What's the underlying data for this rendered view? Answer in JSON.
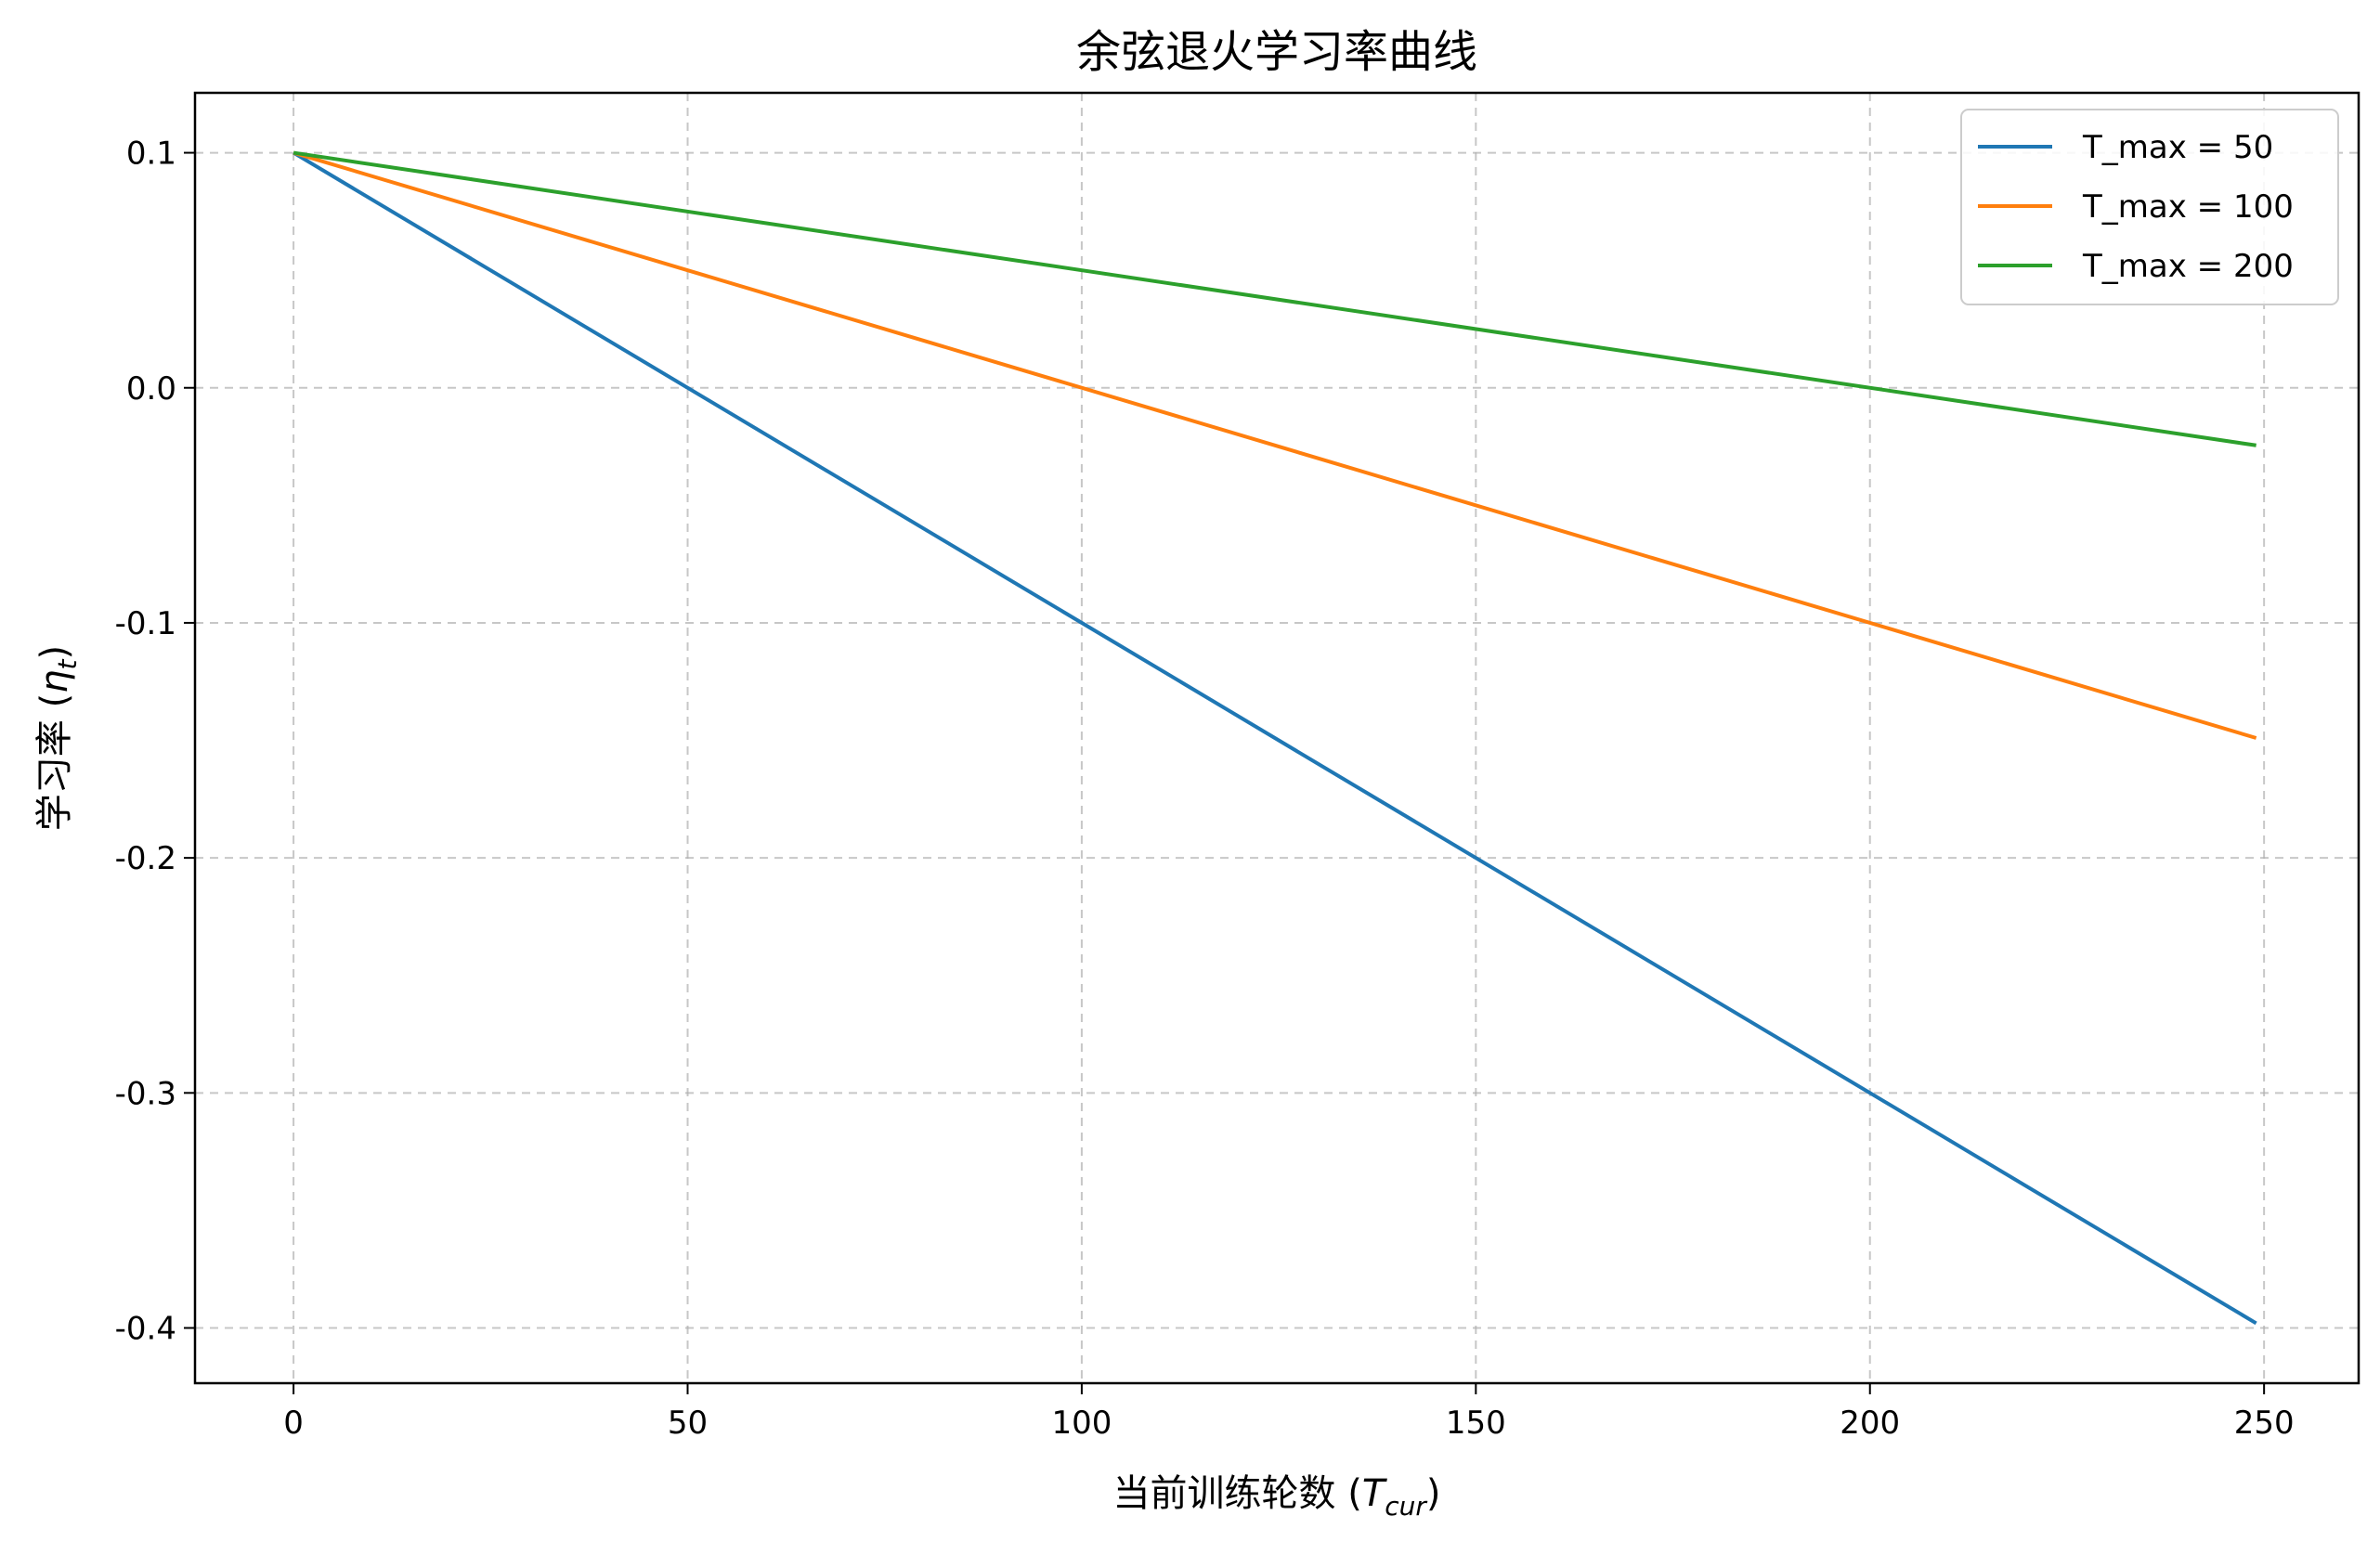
{
  "chart_data": {
    "type": "line",
    "title": "余弦退火学习率曲线",
    "xlabel": {
      "main": "当前训练轮数 (",
      "var": "T",
      "sub": "cur",
      "close": ")"
    },
    "ylabel": {
      "main": "学习率 (",
      "var": "η",
      "sub": "t",
      "close": ")"
    },
    "xlim": [
      -12.5,
      262
    ],
    "ylim": [
      -0.4235,
      0.1255
    ],
    "xticks": [
      0,
      50,
      100,
      150,
      200,
      250
    ],
    "xtick_labels": [
      "0",
      "50",
      "100",
      "150",
      "200",
      "250"
    ],
    "yticks": [
      0.1,
      0.0,
      -0.1,
      -0.2,
      -0.3,
      -0.4
    ],
    "ytick_labels": [
      "0.1",
      "0.0",
      "-0.1",
      "-0.2",
      "-0.3",
      "-0.4"
    ],
    "grid": true,
    "legend_position": "top-right",
    "x": [
      0,
      249
    ],
    "series": [
      {
        "name": "T_max = 50",
        "color": "#1f77b4",
        "values": [
          0.1,
          -0.398
        ]
      },
      {
        "name": "T_max = 100",
        "color": "#ff7f0e",
        "values": [
          0.1,
          -0.149
        ]
      },
      {
        "name": "T_max = 200",
        "color": "#2ca02c",
        "values": [
          0.1,
          -0.0245
        ]
      }
    ]
  }
}
